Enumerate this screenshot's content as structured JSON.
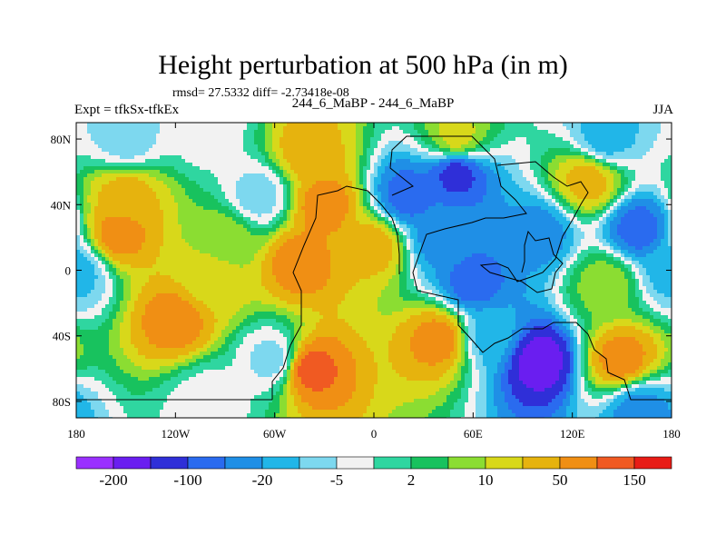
{
  "chart_data": {
    "type": "heatmap",
    "title": "Height perturbation at 500 hPa (in m)",
    "stats_line": "rmsd= 27.5332 diff= -2.73418e-08",
    "case_line": "244_6_MaBP - 244_6_MaBP",
    "left_label": "Expt = tfkSx-tfkEx",
    "right_label": "JJA",
    "x_axis": {
      "range": [
        -180,
        180
      ],
      "ticks": [
        -180,
        -120,
        -60,
        0,
        60,
        120,
        180
      ],
      "tick_labels": [
        "180",
        "120W",
        "60W",
        "0",
        "60E",
        "120E",
        "180"
      ]
    },
    "y_axis": {
      "range": [
        -90,
        90
      ],
      "ticks": [
        80,
        40,
        0,
        -40,
        -80
      ],
      "tick_labels": [
        "80N",
        "40N",
        "0",
        "40S",
        "80S"
      ]
    },
    "colorbar": {
      "labels": [
        "-200",
        "-100",
        "-20",
        "-5",
        "2",
        "10",
        "50",
        "150"
      ],
      "colors": [
        "#9a30ff",
        "#6a1ef0",
        "#2f2fd8",
        "#2a6bef",
        "#1f8fe6",
        "#21b6e8",
        "#7dd8ef",
        "#f2f2f2",
        "#2fd6a0",
        "#18c25e",
        "#8bdd32",
        "#d8d81a",
        "#e6b30e",
        "#f08f14",
        "#f05a22",
        "#e81c16"
      ]
    },
    "field_centers": [
      {
        "lon": -150,
        "lat": 80,
        "level": 6
      },
      {
        "lon": -100,
        "lat": 85,
        "level": 7
      },
      {
        "lon": -40,
        "lat": 72,
        "level": 12
      },
      {
        "lon": 50,
        "lat": 80,
        "level": 11
      },
      {
        "lon": 140,
        "lat": 80,
        "level": 5
      },
      {
        "lon": -150,
        "lat": 45,
        "level": 12
      },
      {
        "lon": -70,
        "lat": 45,
        "level": 6
      },
      {
        "lon": -30,
        "lat": 40,
        "level": 13
      },
      {
        "lon": 20,
        "lat": 45,
        "level": 3
      },
      {
        "lon": 50,
        "lat": 60,
        "level": 2
      },
      {
        "lon": 130,
        "lat": 55,
        "level": 12
      },
      {
        "lon": -155,
        "lat": 22,
        "level": 13
      },
      {
        "lon": -90,
        "lat": 20,
        "level": 10
      },
      {
        "lon": -45,
        "lat": 5,
        "level": 13
      },
      {
        "lon": 0,
        "lat": 15,
        "level": 12
      },
      {
        "lon": 40,
        "lat": 20,
        "level": 4
      },
      {
        "lon": 100,
        "lat": 22,
        "level": 4
      },
      {
        "lon": 160,
        "lat": 25,
        "level": 3
      },
      {
        "lon": -180,
        "lat": 0,
        "level": 5
      },
      {
        "lon": -100,
        "lat": -5,
        "level": 11
      },
      {
        "lon": 60,
        "lat": -8,
        "level": 3
      },
      {
        "lon": 140,
        "lat": -8,
        "level": 10
      },
      {
        "lon": -120,
        "lat": -30,
        "level": 13
      },
      {
        "lon": -60,
        "lat": -55,
        "level": 6
      },
      {
        "lon": -40,
        "lat": -60,
        "level": 14
      },
      {
        "lon": 40,
        "lat": -42,
        "level": 13
      },
      {
        "lon": 70,
        "lat": -40,
        "level": 5
      },
      {
        "lon": 100,
        "lat": -55,
        "level": 1
      },
      {
        "lon": 150,
        "lat": -55,
        "level": 13
      },
      {
        "lon": -100,
        "lat": -80,
        "level": 7
      },
      {
        "lon": 160,
        "lat": -85,
        "level": 4
      }
    ]
  }
}
